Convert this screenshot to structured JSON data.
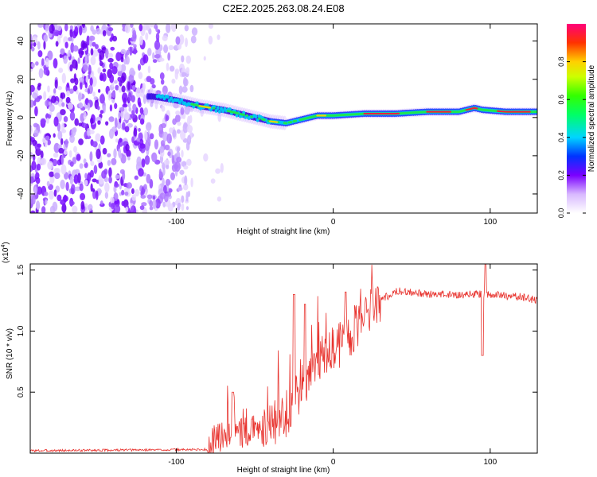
{
  "title": "C2E2.2025.263.08.24.E08",
  "chart_data": [
    {
      "type": "heatmap",
      "xlabel": "Height of straight line (km)",
      "ylabel": "Frequency (Hz)",
      "xlim": [
        -193,
        130
      ],
      "ylim": [
        -50,
        49
      ],
      "xticks": [
        -100,
        0,
        100
      ],
      "yticks": [
        -40,
        -20,
        0,
        20,
        40
      ],
      "colorbar": {
        "label": "Normalized spectral amplitude",
        "range": [
          0,
          1
        ],
        "ticks": [
          0.0,
          0.2,
          0.4,
          0.6,
          0.8
        ],
        "tick_labels": [
          "0.0",
          "0.2",
          "0.4",
          "0.6",
          "0.8"
        ]
      },
      "ridge": {
        "x": [
          -115,
          -100,
          -85,
          -70,
          -55,
          -40,
          -30,
          -20,
          -10,
          0,
          20,
          40,
          60,
          80,
          90,
          95,
          110,
          130
        ],
        "y": [
          11,
          9,
          6,
          4,
          1,
          -2,
          -3,
          -1,
          1,
          1,
          2,
          2,
          3,
          3,
          5,
          4,
          3,
          3
        ]
      },
      "noise_region_x": [
        -193,
        -90
      ]
    },
    {
      "type": "line",
      "xlabel": "Height of straight line (km)",
      "ylabel": "SNR (10 * v/v)",
      "multiplier_label": "(x10",
      "multiplier_exp": "4",
      "multiplier_close": ")",
      "xlim": [
        -193,
        130
      ],
      "ylim": [
        0,
        1.55
      ],
      "xticks": [
        -100,
        0,
        100
      ],
      "yticks": [
        0.5,
        1.0,
        1.5
      ],
      "ytick_labels": [
        "0.5",
        "1.0",
        "1.5"
      ],
      "series_color": "#e8332e",
      "trend": {
        "x": [
          -193,
          -80,
          -75,
          -65,
          -55,
          -40,
          -30,
          -20,
          -10,
          0,
          10,
          20,
          30,
          40,
          60,
          80,
          100,
          120,
          130
        ],
        "y": [
          0.02,
          0.03,
          0.12,
          0.17,
          0.17,
          0.22,
          0.32,
          0.55,
          0.75,
          0.85,
          0.95,
          1.12,
          1.25,
          1.33,
          1.3,
          1.3,
          1.3,
          1.28,
          1.25
        ]
      },
      "spikes": [
        {
          "x": -64,
          "y": 0.5
        },
        {
          "x": -25,
          "y": 1.3
        },
        {
          "x": -18,
          "y": 1.22
        },
        {
          "x": 8,
          "y": 1.32
        },
        {
          "x": 95,
          "y": 0.8
        },
        {
          "x": 97,
          "y": 1.55
        }
      ]
    }
  ]
}
